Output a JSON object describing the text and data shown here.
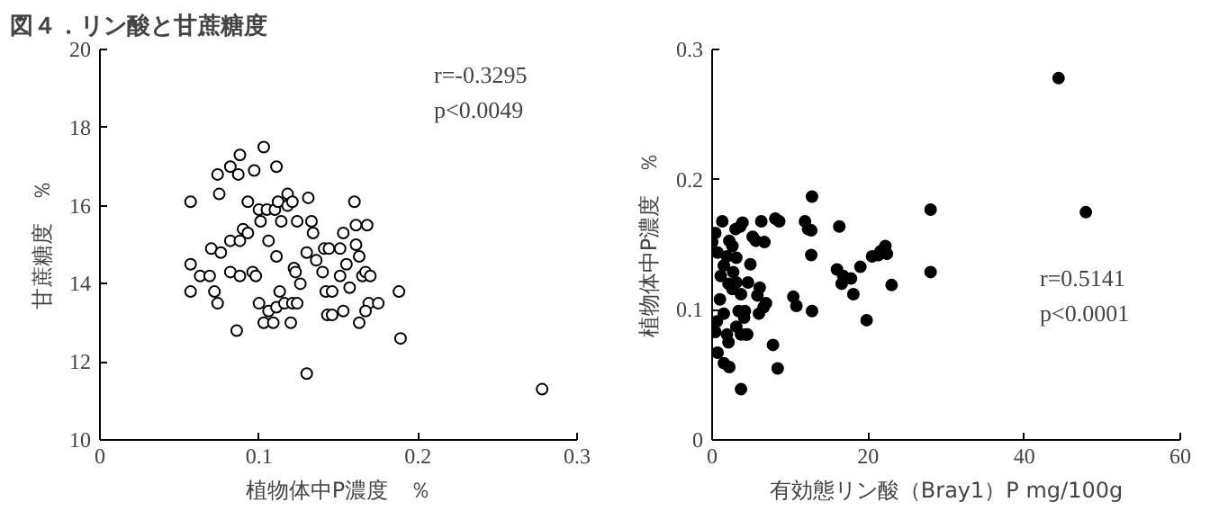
{
  "chart_data": [
    {
      "type": "scatter",
      "title": "図４．リン酸と甘蔗糖度",
      "xlabel": "植物体中P濃度　％",
      "ylabel": "甘蔗糖度　％",
      "annotations": [
        "r=-0.3295",
        "p<0.0049"
      ],
      "marker": "circle",
      "grid": false,
      "xlim": [
        0,
        0.3
      ],
      "xticks": [
        0,
        0.1,
        0.2,
        0.3
      ],
      "ylim": [
        10,
        20
      ],
      "yticks": [
        10,
        12,
        14,
        16,
        18,
        20
      ],
      "x": [
        0.057,
        0.057,
        0.057,
        0.063,
        0.069,
        0.07,
        0.072,
        0.074,
        0.074,
        0.075,
        0.076,
        0.082,
        0.086,
        0.087,
        0.088,
        0.082,
        0.082,
        0.088,
        0.088,
        0.09,
        0.093,
        0.093,
        0.096,
        0.097,
        0.098,
        0.1,
        0.1,
        0.101,
        0.103,
        0.103,
        0.105,
        0.106,
        0.106,
        0.109,
        0.11,
        0.111,
        0.111,
        0.111,
        0.112,
        0.114,
        0.113,
        0.116,
        0.118,
        0.118,
        0.12,
        0.121,
        0.121,
        0.122,
        0.123,
        0.124,
        0.126,
        0.124,
        0.13,
        0.13,
        0.131,
        0.133,
        0.134,
        0.136,
        0.14,
        0.141,
        0.142,
        0.143,
        0.144,
        0.146,
        0.146,
        0.151,
        0.151,
        0.153,
        0.153,
        0.155,
        0.157,
        0.16,
        0.161,
        0.161,
        0.163,
        0.163,
        0.165,
        0.167,
        0.168,
        0.169,
        0.17,
        0.167,
        0.175,
        0.188,
        0.189,
        0.278
      ],
      "series": [
        {
          "color": "#000000",
          "values": [
            16.1,
            14.5,
            13.8,
            14.2,
            14.2,
            14.9,
            13.8,
            13.5,
            16.8,
            16.3,
            14.8,
            17.0,
            12.8,
            16.8,
            17.3,
            15.1,
            14.3,
            14.2,
            15.1,
            15.4,
            15.3,
            16.1,
            14.3,
            16.9,
            14.2,
            13.5,
            15.9,
            15.6,
            17.5,
            13.0,
            15.9,
            15.1,
            13.3,
            13.0,
            15.9,
            17.0,
            14.7,
            13.4,
            16.1,
            15.6,
            13.8,
            13.5,
            16.3,
            16.0,
            13.0,
            13.5,
            16.1,
            14.4,
            14.3,
            13.5,
            14.0,
            15.6,
            11.7,
            14.8,
            16.2,
            15.6,
            15.3,
            14.6,
            14.3,
            14.9,
            13.8,
            13.2,
            14.9,
            13.8,
            13.2,
            14.9,
            14.2,
            15.3,
            13.3,
            14.5,
            13.9,
            16.1,
            15.5,
            15.0,
            14.7,
            13.0,
            14.2,
            14.3,
            15.5,
            13.5,
            14.2,
            13.3,
            13.5,
            13.8,
            12.6,
            11.3
          ]
        }
      ]
    },
    {
      "type": "scatter",
      "xlabel": "有効態リン酸（Bray1）P mg/100g",
      "ylabel": "植物体中P濃度　％",
      "annotations": [
        "r=0.5141",
        "p<0.0001"
      ],
      "marker": "circle",
      "grid": false,
      "xlim": [
        0,
        60
      ],
      "xticks": [
        0,
        20,
        40,
        60
      ],
      "ylim": [
        0,
        0.3
      ],
      "yticks": [
        0,
        0.1,
        0.2,
        0.3
      ],
      "x": [
        0,
        0.4,
        1.3,
        0.7,
        0.6,
        0.4,
        0.7,
        1.0,
        1.1,
        1.5,
        1.9,
        2.2,
        2.6,
        3.0,
        3.6,
        3.9,
        2.1,
        2.6,
        3.1,
        1.5,
        1.9,
        1.5,
        2.2,
        2.1,
        3.1,
        3.4,
        3.7,
        4.1,
        4.3,
        3.7,
        3.1,
        2.7,
        3.7,
        4.6,
        4.2,
        4.5,
        4.9,
        5.2,
        5.6,
        6.3,
        6.7,
        5.8,
        6.1,
        6.0,
        6.9,
        6.6,
        7.8,
        8.4,
        8.1,
        8.6,
        10.4,
        10.8,
        11.9,
        12.3,
        12.7,
        12.8,
        12.7,
        12.8,
        16.3,
        16.0,
        16.8,
        16.6,
        17.8,
        18.1,
        19.0,
        19.8,
        20.5,
        21.3,
        21.6,
        22.2,
        22.4,
        23.0,
        28.0,
        28.0,
        44.4,
        47.9
      ],
      "series": [
        {
          "color": "#000000",
          "values": [
            0.152,
            0.159,
            0.168,
            0.144,
            0.091,
            0.083,
            0.067,
            0.108,
            0.126,
            0.134,
            0.141,
            0.153,
            0.149,
            0.162,
            0.164,
            0.167,
            0.12,
            0.116,
            0.121,
            0.097,
            0.081,
            0.059,
            0.056,
            0.075,
            0.087,
            0.099,
            0.081,
            0.094,
            0.081,
            0.039,
            0.14,
            0.129,
            0.112,
            0.121,
            0.099,
            0.081,
            0.135,
            0.156,
            0.153,
            0.168,
            0.152,
            0.111,
            0.117,
            0.097,
            0.105,
            0.102,
            0.073,
            0.055,
            0.17,
            0.168,
            0.11,
            0.103,
            0.168,
            0.162,
            0.161,
            0.187,
            0.142,
            0.099,
            0.164,
            0.131,
            0.126,
            0.12,
            0.124,
            0.112,
            0.133,
            0.092,
            0.141,
            0.142,
            0.145,
            0.149,
            0.143,
            0.119,
            0.177,
            0.129,
            0.278,
            0.175
          ]
        }
      ]
    }
  ]
}
